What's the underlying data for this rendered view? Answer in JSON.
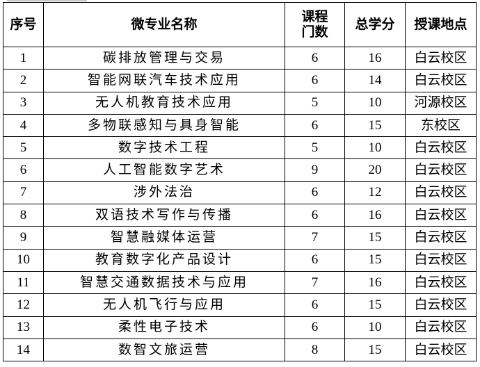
{
  "headers": {
    "index": "序号",
    "name": "微专业名称",
    "courses": "课程门数",
    "credits": "总学分",
    "location": "授课地点"
  },
  "rows": [
    {
      "index": "1",
      "name": "碳排放管理与交易",
      "courses": "6",
      "credits": "16",
      "location": "白云校区"
    },
    {
      "index": "2",
      "name": "智能网联汽车技术应用",
      "courses": "6",
      "credits": "14",
      "location": "白云校区"
    },
    {
      "index": "3",
      "name": "无人机教育技术应用",
      "courses": "5",
      "credits": "10",
      "location": "河源校区"
    },
    {
      "index": "4",
      "name": "多物联感知与具身智能",
      "courses": "6",
      "credits": "15",
      "location": "东校区"
    },
    {
      "index": "5",
      "name": "数字技术工程",
      "courses": "5",
      "credits": "10",
      "location": "白云校区"
    },
    {
      "index": "6",
      "name": "人工智能数字艺术",
      "courses": "9",
      "credits": "20",
      "location": "白云校区"
    },
    {
      "index": "7",
      "name": "涉外法治",
      "courses": "6",
      "credits": "12",
      "location": "白云校区"
    },
    {
      "index": "8",
      "name": "双语技术写作与传播",
      "courses": "6",
      "credits": "16",
      "location": "白云校区"
    },
    {
      "index": "9",
      "name": "智慧融媒体运营",
      "courses": "7",
      "credits": "15",
      "location": "白云校区"
    },
    {
      "index": "10",
      "name": "教育数字化产品设计",
      "courses": "6",
      "credits": "15",
      "location": "白云校区"
    },
    {
      "index": "11",
      "name": "智慧交通数据技术与应用",
      "courses": "7",
      "credits": "16",
      "location": "白云校区"
    },
    {
      "index": "12",
      "name": "无人机飞行与应用",
      "courses": "6",
      "credits": "15",
      "location": "白云校区"
    },
    {
      "index": "13",
      "name": "柔性电子技术",
      "courses": "6",
      "credits": "10",
      "location": "白云校区"
    },
    {
      "index": "14",
      "name": "数智文旅运营",
      "courses": "8",
      "credits": "15",
      "location": "白云校区"
    }
  ]
}
